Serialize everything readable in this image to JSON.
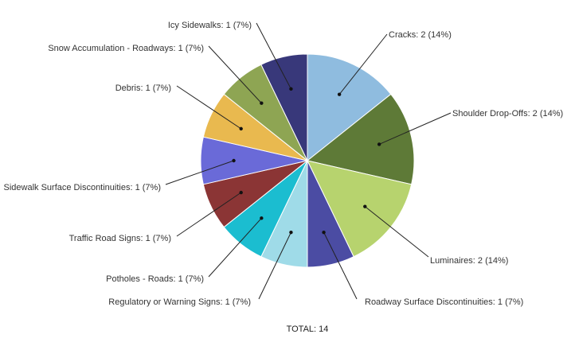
{
  "chart_data": {
    "type": "pie",
    "total_label": "TOTAL: 14",
    "slices": [
      {
        "label": "Cracks: 2 (14%)",
        "value": 2,
        "color": "#8fbcdf"
      },
      {
        "label": "Shoulder Drop-Offs: 2 (14%)",
        "value": 2,
        "color": "#5e7a37"
      },
      {
        "label": "Luminaires: 2 (14%)",
        "value": 2,
        "color": "#b7d36e"
      },
      {
        "label": "Roadway Surface Discontinuities: 1 (7%)",
        "value": 1,
        "color": "#4b4ca3"
      },
      {
        "label": "Regulatory or Warning Signs: 1 (7%)",
        "value": 1,
        "color": "#9fdbe8"
      },
      {
        "label": "Potholes - Roads: 1 (7%)",
        "value": 1,
        "color": "#1bbdd0"
      },
      {
        "label": "Traffic Road Signs: 1 (7%)",
        "value": 1,
        "color": "#8b3535"
      },
      {
        "label": "Sidewalk Surface Discontinuities: 1 (7%)",
        "value": 1,
        "color": "#6a6ad8"
      },
      {
        "label": "Debris: 1 (7%)",
        "value": 1,
        "color": "#e9b94f"
      },
      {
        "label": "Snow Accumulation - Roadways: 1 (7%)",
        "value": 1,
        "color": "#8ea553"
      },
      {
        "label": "Icy Sidewalks: 1 (7%)",
        "value": 1,
        "color": "#38387a"
      }
    ]
  }
}
